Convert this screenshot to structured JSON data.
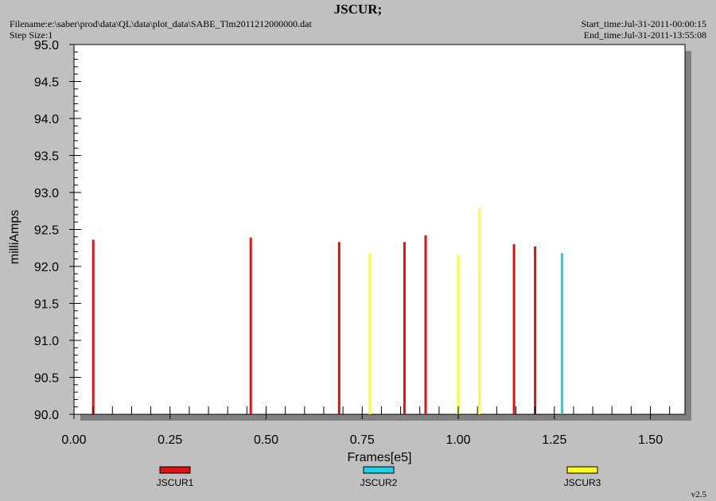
{
  "header": {
    "title": "JSCUR;",
    "filename": "Filename:e:\\saber\\prod\\data\\QL\\data\\plot_data\\SABE_Tlm2011212000000.dat",
    "step_size": "Step Size:1",
    "start_time": "Start_time:Jul-31-2011-00:00:15",
    "end_time": "End_time:Jul-31-2011-13:55:08"
  },
  "version": "v2.5",
  "colors": {
    "background": "#c0c0c0",
    "plot_area": "#ffffff",
    "shadow": "#808080",
    "JSCUR1": "#e01010",
    "JSCUR2": "#20d0e8",
    "JSCUR3": "#ffff20"
  },
  "chart_data": {
    "type": "bar",
    "title": "JSCUR;",
    "xlabel": "Frames[e5]",
    "ylabel": "milliAmps",
    "xlim": [
      0.0,
      1.59
    ],
    "ylim": [
      90.0,
      95.0
    ],
    "x_ticks": [
      0.0,
      0.25,
      0.5,
      0.75,
      1.0,
      1.25,
      1.5
    ],
    "x_tick_labels": [
      "0.00",
      "0.25",
      "0.50",
      "0.75",
      "1.00",
      "1.25",
      "1.50"
    ],
    "y_ticks": [
      90.0,
      90.5,
      91.0,
      91.5,
      92.0,
      92.5,
      93.0,
      93.5,
      94.0,
      94.5,
      95.0
    ],
    "y_tick_labels": [
      "90.0",
      "90.5",
      "91.0",
      "91.5",
      "92.0",
      "92.5",
      "93.0",
      "93.5",
      "94.0",
      "94.5",
      "95.0"
    ],
    "grid": false,
    "legend_position": "bottom",
    "series": [
      {
        "name": "JSCUR1",
        "color": "#e01010",
        "x": [
          0.05,
          0.46,
          0.69,
          0.86,
          0.915,
          1.145,
          1.2
        ],
        "y": [
          92.36,
          92.39,
          92.33,
          92.33,
          92.42,
          92.3,
          92.27
        ]
      },
      {
        "name": "JSCUR2",
        "color": "#20d0e8",
        "x": [
          1.27
        ],
        "y": [
          92.18
        ]
      },
      {
        "name": "JSCUR3",
        "color": "#ffff20",
        "x": [
          0.77,
          1.0,
          1.055
        ],
        "y": [
          92.18,
          92.15,
          92.78
        ]
      }
    ]
  }
}
